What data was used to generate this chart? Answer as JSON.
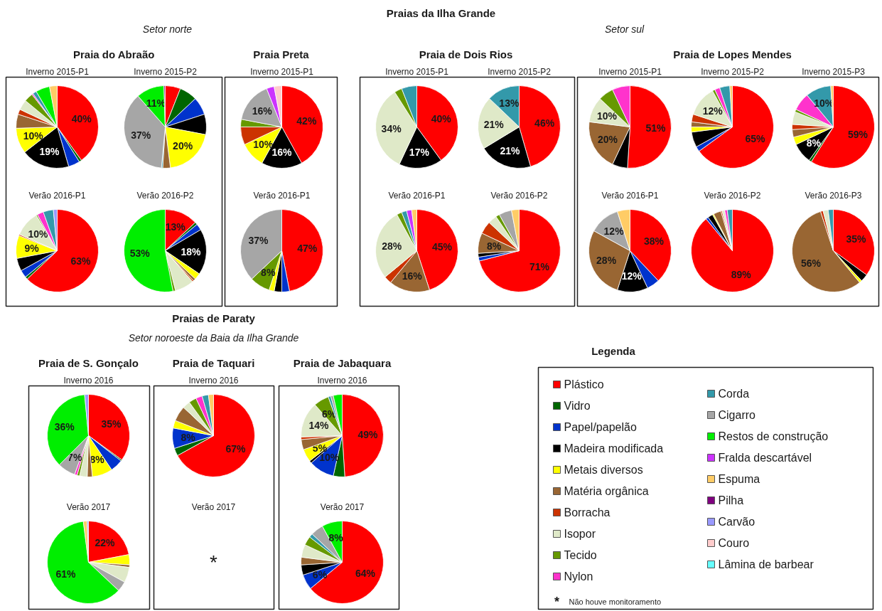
{
  "chart_data": [
    {
      "type": "other",
      "title": "Praias da Ilha Grande",
      "annotations": [
        "Setor norte",
        "Setor sul",
        "Praia do Abraão",
        "Praia Preta",
        "Praia de Dois Rios",
        "Praia de Lopes Mendes",
        "Praias de Paraty",
        "Setor noroeste da Baia da Ilha Grande",
        "Praia de S. Gonçalo",
        "Praia de Taquari",
        "Praia de Jabaquara"
      ]
    },
    {
      "type": "pie",
      "title": "Inverno 2015-P1",
      "legend": "bottom right",
      "legend_title": "Legenda",
      "categories": [
        "Plástico",
        "Vidro",
        "Papel/papelão",
        "Madeira modificada",
        "Metais diversos",
        "Matéria orgânica",
        "Borracha",
        "Isopor",
        "Tecido",
        "Nylon",
        "Corda",
        "Cigarro",
        "Restos de construção",
        "Fralda descartável",
        "Espuma",
        "Pilha",
        "Carvão",
        "Couro",
        "Lâmina de barbear"
      ],
      "colors": [
        "#ff0000",
        "#006600",
        "#0033cc",
        "#000000",
        "#ffff00",
        "#996633",
        "#cc3300",
        "#dfe9c8",
        "#669900",
        "#ff33cc",
        "#3399aa",
        "#a6a6a6",
        "#00ee00",
        "#cc33ff",
        "#ffcc66",
        "#800080",
        "#9999ff",
        "#ffcccc",
        "#66ffff"
      ],
      "values": [
        40,
        1,
        4.5,
        19,
        10,
        5.5,
        2,
        4,
        3.5,
        0.5,
        1.5,
        null,
        5.5,
        null,
        3,
        null,
        null,
        null,
        null
      ],
      "value_labels": [
        "40%",
        null,
        null,
        "19%",
        "10%",
        null,
        null,
        null,
        null,
        null,
        null,
        null,
        null,
        null,
        null,
        null,
        null,
        null,
        null
      ]
    },
    {
      "type": "pie",
      "title": "Inverno 2015-P2",
      "categories": [
        null,
        null,
        null,
        null,
        null,
        null,
        null,
        null,
        null,
        null,
        null,
        null,
        null,
        null,
        null,
        null,
        null,
        null,
        null
      ],
      "colors": [
        "#ff0000",
        "#006600",
        "#0033cc",
        "#000000",
        "#ffff00",
        "#996633",
        "#cc3300",
        "#dfe9c8",
        "#669900",
        "#ff33cc",
        "#3399aa",
        "#a6a6a6",
        "#00ee00",
        "#cc33ff",
        "#ffcc66",
        "#800080",
        "#9999ff",
        "#ffcccc",
        "#66ffff"
      ],
      "values": [
        6,
        7,
        7,
        8,
        20,
        3,
        null,
        null,
        null,
        null,
        0.5,
        37,
        11,
        null,
        null,
        0.5,
        null,
        null,
        null
      ],
      "value_labels": [
        null,
        null,
        null,
        null,
        "20%",
        null,
        null,
        null,
        null,
        null,
        null,
        "37%",
        "11%",
        null,
        null,
        null,
        null,
        null,
        null
      ]
    },
    {
      "type": "pie",
      "title": "Inverno 2015-P1",
      "categories": [
        null,
        null,
        null,
        null,
        null,
        null,
        null,
        null,
        null,
        null,
        null,
        null,
        null,
        null,
        null,
        null,
        null,
        null,
        null
      ],
      "colors": [
        "#ff0000",
        "#006600",
        "#0033cc",
        "#000000",
        "#ffff00",
        "#996633",
        "#cc3300",
        "#dfe9c8",
        "#669900",
        "#ff33cc",
        "#3399aa",
        "#a6a6a6",
        "#00ee00",
        "#cc33ff",
        "#ffcc66",
        "#800080",
        "#9999ff",
        "#ffcccc",
        "#66ffff"
      ],
      "values": [
        42,
        null,
        null,
        16,
        10,
        null,
        7,
        null,
        3,
        null,
        null,
        16,
        null,
        3,
        null,
        null,
        null,
        3,
        null
      ],
      "value_labels": [
        "42%",
        null,
        null,
        "16%",
        "10%",
        null,
        null,
        null,
        null,
        null,
        null,
        "16%",
        null,
        null,
        null,
        null,
        null,
        null,
        null
      ]
    },
    {
      "type": "pie",
      "title": "Inverno 2015-P1",
      "categories": [
        null,
        null,
        null,
        null,
        null,
        null,
        null,
        null,
        null,
        null,
        null,
        null,
        null,
        null,
        null,
        null,
        null,
        null,
        null
      ],
      "colors": [
        "#ff0000",
        "#006600",
        "#0033cc",
        "#000000",
        "#ffff00",
        "#996633",
        "#cc3300",
        "#dfe9c8",
        "#669900",
        "#ff33cc",
        "#3399aa",
        "#a6a6a6",
        "#00ee00",
        "#cc33ff",
        "#ffcc66",
        "#800080",
        "#9999ff",
        "#ffcccc",
        "#66ffff"
      ],
      "values": [
        40,
        null,
        null,
        17,
        null,
        null,
        null,
        34,
        3,
        null,
        6,
        null,
        null,
        null,
        null,
        null,
        null,
        null,
        null
      ],
      "value_labels": [
        "40%",
        null,
        null,
        "17%",
        null,
        null,
        null,
        "34%",
        null,
        null,
        null,
        null,
        null,
        null,
        null,
        null,
        null,
        null,
        null
      ]
    },
    {
      "type": "pie",
      "title": "Inverno 2015-P2",
      "categories": [
        null,
        null,
        null,
        null,
        null,
        null,
        null,
        null,
        null,
        null,
        null,
        null,
        null,
        null,
        null,
        null,
        null,
        null,
        null
      ],
      "colors": [
        "#ff0000",
        "#006600",
        "#0033cc",
        "#000000",
        "#ffff00",
        "#996633",
        "#cc3300",
        "#dfe9c8",
        "#669900",
        "#ff33cc",
        "#3399aa",
        "#a6a6a6",
        "#00ee00",
        "#cc33ff",
        "#ffcc66",
        "#800080",
        "#9999ff",
        "#ffcccc",
        "#66ffff"
      ],
      "values": [
        46,
        null,
        null,
        21,
        null,
        null,
        null,
        21,
        null,
        null,
        13,
        null,
        null,
        null,
        null,
        null,
        null,
        null,
        null
      ],
      "value_labels": [
        "46%",
        null,
        null,
        "21%",
        null,
        null,
        null,
        "21%",
        null,
        null,
        "13%",
        null,
        null,
        null,
        null,
        null,
        null,
        null,
        null
      ]
    },
    {
      "type": "pie",
      "title": "Inverno 2015-P1",
      "categories": [
        null,
        null,
        null,
        null,
        null,
        null,
        null,
        null,
        null,
        null,
        null,
        null,
        null,
        null,
        null,
        null,
        null,
        null,
        null
      ],
      "colors": [
        "#ff0000",
        "#006600",
        "#0033cc",
        "#000000",
        "#ffff00",
        "#996633",
        "#cc3300",
        "#dfe9c8",
        "#669900",
        "#ff33cc",
        "#3399aa",
        "#a6a6a6",
        "#00ee00",
        "#cc33ff",
        "#ffcc66",
        "#800080",
        "#9999ff",
        "#ffcccc",
        "#66ffff"
      ],
      "values": [
        51,
        null,
        null,
        6,
        null,
        20,
        null,
        10,
        6,
        7,
        null,
        null,
        null,
        null,
        null,
        null,
        null,
        null,
        null
      ],
      "value_labels": [
        "51%",
        null,
        null,
        null,
        null,
        "20%",
        null,
        "10%",
        null,
        null,
        null,
        null,
        null,
        null,
        null,
        null,
        null,
        null,
        null
      ]
    },
    {
      "type": "pie",
      "title": "Inverno 2015-P2",
      "categories": [
        null,
        null,
        null,
        null,
        null,
        null,
        null,
        null,
        null,
        null,
        null,
        null,
        null,
        null,
        null,
        null,
        null,
        null,
        null
      ],
      "colors": [
        "#ff0000",
        "#006600",
        "#0033cc",
        "#000000",
        "#ffff00",
        "#996633",
        "#cc3300",
        "#dfe9c8",
        "#669900",
        "#ff33cc",
        "#3399aa",
        "#a6a6a6",
        "#00ee00",
        "#cc33ff",
        "#ffcc66",
        "#800080",
        "#9999ff",
        "#ffcccc",
        "#66ffff"
      ],
      "values": [
        65,
        null,
        2,
        6,
        2,
        2,
        3,
        12,
        1,
        2,
        4,
        null,
        null,
        null,
        1,
        null,
        null,
        null,
        null
      ],
      "value_labels": [
        "65%",
        null,
        null,
        null,
        null,
        null,
        null,
        "12%",
        null,
        null,
        null,
        null,
        null,
        null,
        null,
        null,
        null,
        null,
        null
      ]
    },
    {
      "type": "pie",
      "title": "Inverno 2015-P3",
      "categories": [
        null,
        null,
        null,
        null,
        null,
        null,
        null,
        null,
        null,
        null,
        null,
        null,
        null,
        null,
        null,
        null,
        null,
        null,
        null
      ],
      "colors": [
        "#ff0000",
        "#006600",
        "#0033cc",
        "#000000",
        "#ffff00",
        "#996633",
        "#cc3300",
        "#dfe9c8",
        "#669900",
        "#ff33cc",
        "#3399aa",
        "#a6a6a6",
        "#00ee00",
        "#cc33ff",
        "#ffcc66",
        "#800080",
        "#9999ff",
        "#ffcccc",
        "#66ffff"
      ],
      "values": [
        59,
        1,
        null,
        8,
        3,
        3,
        2,
        5,
        1,
        7,
        10,
        null,
        null,
        null,
        1,
        null,
        null,
        null,
        null
      ],
      "value_labels": [
        "59%",
        null,
        null,
        "8%",
        null,
        null,
        null,
        null,
        null,
        null,
        "10%",
        null,
        null,
        null,
        null,
        null,
        null,
        null,
        null
      ]
    },
    {
      "type": "pie",
      "title": "Verão 2016-P1",
      "categories": [
        null,
        null,
        null,
        null,
        null,
        null,
        null,
        null,
        null,
        null,
        null,
        null,
        null,
        null,
        null,
        null,
        null,
        null,
        null
      ],
      "colors": [
        "#ff0000",
        "#006600",
        "#0033cc",
        "#000000",
        "#ffff00",
        "#996633",
        "#cc3300",
        "#dfe9c8",
        "#669900",
        "#ff33cc",
        "#3399aa",
        "#a6a6a6",
        "#00ee00",
        "#cc33ff",
        "#ffcc66",
        "#800080",
        "#9999ff",
        "#ffcccc",
        "#66ffff"
      ],
      "values": [
        63,
        1,
        3,
        5,
        9,
        null,
        0.5,
        10,
        0.5,
        2.5,
        4,
        null,
        null,
        null,
        null,
        null,
        1.5,
        null,
        null
      ],
      "value_labels": [
        "63%",
        null,
        null,
        null,
        "9%",
        null,
        null,
        "10%",
        null,
        null,
        null,
        null,
        null,
        null,
        null,
        null,
        null,
        null,
        null
      ]
    },
    {
      "type": "pie",
      "title": "Verão 2016-P2",
      "categories": [
        null,
        null,
        null,
        null,
        null,
        null,
        null,
        null,
        null,
        null,
        null,
        null,
        null,
        null,
        null,
        null,
        null,
        null,
        null
      ],
      "colors": [
        "#ff0000",
        "#006600",
        "#0033cc",
        "#000000",
        "#ffff00",
        "#996633",
        "#cc3300",
        "#dfe9c8",
        "#669900",
        "#ff33cc",
        "#3399aa",
        "#a6a6a6",
        "#00ee00",
        "#cc33ff",
        "#ffcc66",
        "#800080",
        "#9999ff",
        "#ffcccc",
        "#66ffff"
      ],
      "values": [
        13,
        1,
        2.5,
        18,
        2.5,
        1,
        0.5,
        7.5,
        1,
        null,
        null,
        null,
        53,
        null,
        null,
        null,
        null,
        null,
        null
      ],
      "value_labels": [
        "13%",
        null,
        null,
        "18%",
        null,
        null,
        null,
        null,
        null,
        null,
        null,
        null,
        "53%",
        null,
        null,
        null,
        null,
        null,
        null
      ]
    },
    {
      "type": "pie",
      "title": "Verão 2016-P1",
      "categories": [
        null,
        null,
        null,
        null,
        null,
        null,
        null,
        null,
        null,
        null,
        null,
        null,
        null,
        null,
        null,
        null,
        null,
        null,
        null
      ],
      "colors": [
        "#ff0000",
        "#006600",
        "#0033cc",
        "#000000",
        "#ffff00",
        "#996633",
        "#cc3300",
        "#dfe9c8",
        "#669900",
        "#ff33cc",
        "#3399aa",
        "#a6a6a6",
        "#00ee00",
        "#cc33ff",
        "#ffcc66",
        "#800080",
        "#9999ff",
        "#ffcccc",
        "#66ffff"
      ],
      "values": [
        47,
        null,
        3,
        3,
        2,
        null,
        null,
        null,
        8,
        null,
        null,
        37,
        null,
        null,
        null,
        null,
        null,
        null,
        null
      ],
      "value_labels": [
        "47%",
        null,
        null,
        null,
        null,
        null,
        null,
        null,
        "8%",
        null,
        null,
        "37%",
        null,
        null,
        null,
        null,
        null,
        null,
        null
      ]
    },
    {
      "type": "pie",
      "title": "Verão 2016-P1",
      "categories": [
        null,
        null,
        null,
        null,
        null,
        null,
        null,
        null,
        null,
        null,
        null,
        null,
        null,
        null,
        null,
        null,
        null,
        null,
        null
      ],
      "colors": [
        "#ff0000",
        "#006600",
        "#0033cc",
        "#000000",
        "#ffff00",
        "#996633",
        "#cc3300",
        "#dfe9c8",
        "#669900",
        "#ff33cc",
        "#3399aa",
        "#a6a6a6",
        "#00ee00",
        "#cc33ff",
        "#ffcc66",
        "#800080",
        "#9999ff",
        "#ffcccc",
        "#66ffff"
      ],
      "values": [
        45,
        null,
        null,
        null,
        null,
        16,
        3,
        28,
        2,
        null,
        2,
        null,
        null,
        2,
        2,
        null,
        null,
        null,
        null
      ],
      "value_labels": [
        "45%",
        null,
        null,
        null,
        null,
        "16%",
        null,
        "28%",
        null,
        null,
        null,
        null,
        null,
        null,
        null,
        null,
        null,
        null,
        null
      ]
    },
    {
      "type": "pie",
      "title": "Verão 2016-P2",
      "categories": [
        null,
        null,
        null,
        null,
        null,
        null,
        null,
        null,
        null,
        null,
        null,
        null,
        null,
        null,
        null,
        null,
        null,
        null,
        null
      ],
      "colors": [
        "#ff0000",
        "#006600",
        "#0033cc",
        "#000000",
        "#ffff00",
        "#996633",
        "#cc3300",
        "#dfe9c8",
        "#669900",
        "#ff33cc",
        "#3399aa",
        "#a6a6a6",
        "#00ee00",
        "#cc33ff",
        "#ffcc66",
        "#800080",
        "#9999ff",
        "#ffcccc",
        "#66ffff"
      ],
      "values": [
        71,
        null,
        1.5,
        1.5,
        null,
        8,
        5,
        3.5,
        1.5,
        null,
        null,
        5,
        null,
        null,
        3,
        null,
        null,
        null,
        null
      ],
      "value_labels": [
        "71%",
        null,
        null,
        null,
        null,
        "8%",
        null,
        null,
        null,
        null,
        null,
        null,
        null,
        null,
        null,
        null,
        null,
        null,
        null
      ]
    },
    {
      "type": "pie",
      "title": "Verão 2016-P1",
      "categories": [
        null,
        null,
        null,
        null,
        null,
        null,
        null,
        null,
        null,
        null,
        null,
        null,
        null,
        null,
        null,
        null,
        null,
        null,
        null
      ],
      "colors": [
        "#ff0000",
        "#006600",
        "#0033cc",
        "#000000",
        "#ffff00",
        "#996633",
        "#cc3300",
        "#dfe9c8",
        "#669900",
        "#ff33cc",
        "#3399aa",
        "#a6a6a6",
        "#00ee00",
        "#cc33ff",
        "#ffcc66",
        "#800080",
        "#9999ff",
        "#ffcccc",
        "#66ffff"
      ],
      "values": [
        38,
        null,
        5,
        12,
        null,
        28,
        null,
        null,
        null,
        null,
        null,
        12,
        null,
        null,
        5,
        null,
        null,
        null,
        null
      ],
      "value_labels": [
        "38%",
        null,
        null,
        "12%",
        null,
        "28%",
        null,
        null,
        null,
        null,
        null,
        "12%",
        null,
        null,
        null,
        null,
        null,
        null,
        null
      ]
    },
    {
      "type": "pie",
      "title": "Verão 2016-P2",
      "categories": [
        null,
        null,
        null,
        null,
        null,
        null,
        null,
        null,
        null,
        null,
        null,
        null,
        null,
        null,
        null,
        null,
        null,
        null,
        null
      ],
      "colors": [
        "#ff0000",
        "#006600",
        "#0033cc",
        "#000000",
        "#ffff00",
        "#996633",
        "#cc3300",
        "#dfe9c8",
        "#669900",
        "#ff33cc",
        "#3399aa",
        "#a6a6a6",
        "#00ee00",
        "#cc33ff",
        "#ffcc66",
        "#800080",
        "#9999ff",
        "#ffcccc",
        "#66ffff"
      ],
      "values": [
        89,
        null,
        1,
        2,
        0.5,
        3,
        0.5,
        1,
        null,
        1,
        2,
        null,
        null,
        null,
        null,
        null,
        null,
        null,
        null
      ],
      "value_labels": [
        "89%",
        null,
        null,
        null,
        null,
        null,
        null,
        null,
        null,
        null,
        null,
        null,
        null,
        null,
        null,
        null,
        null,
        null,
        null
      ]
    },
    {
      "type": "pie",
      "title": "Verão 2016-P3",
      "categories": [
        null,
        null,
        null,
        null,
        null,
        null,
        null,
        null,
        null,
        null,
        null,
        null,
        null,
        null,
        null,
        null,
        null,
        null,
        null
      ],
      "colors": [
        "#ff0000",
        "#006600",
        "#0033cc",
        "#000000",
        "#ffff00",
        "#996633",
        "#cc3300",
        "#dfe9c8",
        "#669900",
        "#ff33cc",
        "#3399aa",
        "#a6a6a6",
        "#00ee00",
        "#cc33ff",
        "#ffcc66",
        "#800080",
        "#9999ff",
        "#ffcccc",
        "#66ffff"
      ],
      "values": [
        35,
        null,
        null,
        3,
        1,
        56,
        1,
        2,
        null,
        null,
        2,
        null,
        null,
        null,
        null,
        null,
        null,
        null,
        null
      ],
      "value_labels": [
        "35%",
        null,
        null,
        null,
        null,
        "56%",
        null,
        null,
        null,
        null,
        null,
        null,
        null,
        null,
        null,
        null,
        null,
        null,
        null
      ]
    },
    {
      "type": "pie",
      "title": "Inverno 2016",
      "categories": [
        null,
        null,
        null,
        null,
        null,
        null,
        null,
        null,
        null,
        null,
        null,
        null,
        null,
        null,
        null,
        null,
        null,
        null,
        null
      ],
      "colors": [
        "#ff0000",
        "#006600",
        "#0033cc",
        "#000000",
        "#ffff00",
        "#996633",
        "#cc3300",
        "#dfe9c8",
        "#669900",
        "#ff33cc",
        "#3399aa",
        "#a6a6a6",
        "#00ee00",
        "#cc33ff",
        "#ffcc66",
        "#800080",
        "#9999ff",
        "#ffcccc",
        "#66ffff"
      ],
      "values": [
        35,
        0.5,
        5,
        null,
        8,
        2,
        null,
        3,
        1,
        1,
        null,
        7,
        36,
        null,
        null,
        null,
        1.5,
        null,
        null
      ],
      "value_labels": [
        "35%",
        null,
        null,
        null,
        "8%",
        null,
        null,
        null,
        null,
        null,
        null,
        "7%",
        "36%",
        null,
        null,
        null,
        null,
        null,
        null
      ]
    },
    {
      "type": "pie",
      "title": "Inverno 2016",
      "categories": [
        null,
        null,
        null,
        null,
        null,
        null,
        null,
        null,
        null,
        null,
        null,
        null,
        null,
        null,
        null,
        null,
        null,
        null,
        null
      ],
      "colors": [
        "#ff0000",
        "#006600",
        "#0033cc",
        "#000000",
        "#ffff00",
        "#996633",
        "#cc3300",
        "#dfe9c8",
        "#669900",
        "#ff33cc",
        "#3399aa",
        "#a6a6a6",
        "#00ee00",
        "#cc33ff",
        "#ffcc66",
        "#800080",
        "#9999ff",
        "#ffcccc",
        "#66ffff"
      ],
      "values": [
        67,
        3,
        8,
        null,
        3,
        6,
        null,
        3,
        3,
        2.5,
        2.5,
        null,
        null,
        null,
        2,
        null,
        null,
        null,
        null
      ],
      "value_labels": [
        "67%",
        null,
        "8%",
        null,
        null,
        null,
        null,
        null,
        null,
        null,
        null,
        null,
        null,
        null,
        null,
        null,
        null,
        null,
        null
      ]
    },
    {
      "type": "pie",
      "title": "Inverno 2016",
      "categories": [
        null,
        null,
        null,
        null,
        null,
        null,
        null,
        null,
        null,
        null,
        null,
        null,
        null,
        null,
        null,
        null,
        null,
        null,
        null
      ],
      "colors": [
        "#ff0000",
        "#006600",
        "#0033cc",
        "#000000",
        "#ffff00",
        "#996633",
        "#cc3300",
        "#dfe9c8",
        "#669900",
        "#ff33cc",
        "#3399aa",
        "#a6a6a6",
        "#00ee00",
        "#cc33ff",
        "#ffcc66",
        "#800080",
        "#9999ff",
        "#ffcccc",
        "#66ffff"
      ],
      "values": [
        49,
        4.5,
        10,
        1,
        5,
        4,
        1,
        14,
        6,
        null,
        1,
        1,
        3.5,
        null,
        null,
        null,
        null,
        null,
        null
      ],
      "value_labels": [
        "49%",
        null,
        "10%",
        null,
        "5%",
        null,
        null,
        "14%",
        "6%",
        null,
        null,
        null,
        null,
        null,
        null,
        null,
        null,
        null,
        null
      ]
    },
    {
      "type": "pie",
      "title": "Verão 2017",
      "categories": [
        null,
        null,
        null,
        null,
        null,
        null,
        null,
        null,
        null,
        null,
        null,
        null,
        null,
        null,
        null,
        null,
        null,
        null,
        null
      ],
      "colors": [
        "#ff0000",
        "#006600",
        "#0033cc",
        "#000000",
        "#ffff00",
        "#996633",
        "#cc3300",
        "#dfe9c8",
        "#669900",
        "#ff33cc",
        "#3399aa",
        "#a6a6a6",
        "#00ee00",
        "#cc33ff",
        "#ffcc66",
        "#800080",
        "#9999ff",
        "#ffcccc",
        "#66ffff"
      ],
      "values": [
        22,
        null,
        null,
        null,
        4,
        1,
        null,
        6,
        null,
        null,
        null,
        4,
        61,
        null,
        1.5,
        null,
        0.5,
        null,
        null
      ],
      "value_labels": [
        "22%",
        null,
        null,
        null,
        null,
        null,
        null,
        null,
        null,
        null,
        null,
        null,
        "61%",
        null,
        null,
        null,
        null,
        null,
        null
      ]
    },
    {
      "type": "other",
      "title": "Verão 2017",
      "annotations": [
        "*",
        "*",
        "Não houve monitoramento"
      ]
    },
    {
      "type": "pie",
      "title": "Verão 2017",
      "categories": [
        null,
        null,
        null,
        null,
        null,
        null,
        null,
        null,
        null,
        null,
        null,
        null,
        null,
        null,
        null,
        null,
        null,
        null,
        null
      ],
      "colors": [
        "#ff0000",
        "#006600",
        "#0033cc",
        "#000000",
        "#ffff00",
        "#996633",
        "#cc3300",
        "#dfe9c8",
        "#669900",
        "#ff33cc",
        "#3399aa",
        "#a6a6a6",
        "#00ee00",
        "#cc33ff",
        "#ffcc66",
        "#800080",
        "#9999ff",
        "#ffcccc",
        "#66ffff"
      ],
      "values": [
        64,
        null,
        6,
        4,
        null,
        3,
        null,
        5,
        3.5,
        null,
        1.5,
        5,
        8,
        null,
        null,
        null,
        null,
        null,
        null
      ],
      "value_labels": [
        "64%",
        null,
        "6%",
        null,
        null,
        null,
        null,
        null,
        null,
        null,
        null,
        null,
        "8%",
        null,
        null,
        null,
        null,
        null,
        null
      ]
    }
  ]
}
